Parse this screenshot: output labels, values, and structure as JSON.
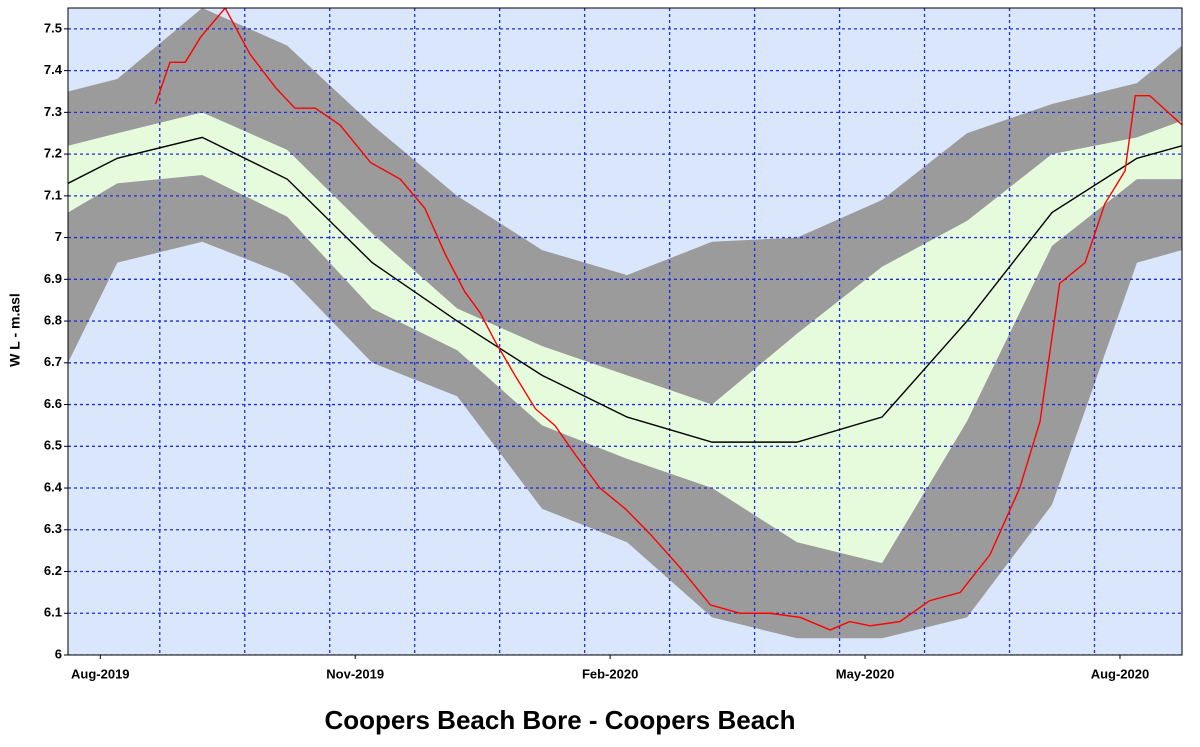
{
  "chart_data": {
    "type": "line",
    "title": "Coopers Beach Bore - Coopers Beach",
    "ylabel": "W L - m.asl",
    "xlim": [
      -0.38,
      12.73
    ],
    "xticks": [
      {
        "value": 0,
        "label": "Aug-2019"
      },
      {
        "value": 3,
        "label": "Nov-2019"
      },
      {
        "value": 6,
        "label": "Feb-2020"
      },
      {
        "value": 9,
        "label": "May-2020"
      },
      {
        "value": 12,
        "label": "Aug-2020"
      }
    ],
    "xminor": [
      0.7,
      1.7,
      2.7,
      3.7,
      4.7,
      5.7,
      6.7,
      7.7,
      8.7,
      9.7,
      10.7,
      11.7
    ],
    "ylim": [
      6.0,
      7.55
    ],
    "yticks": [
      6.0,
      6.1,
      6.2,
      6.3,
      6.4,
      6.5,
      6.6,
      6.7,
      6.8,
      6.9,
      7.0,
      7.1,
      7.2,
      7.3,
      7.4,
      7.5
    ],
    "grid": true,
    "background": "#dae6fb",
    "grid_color": "#1d2ee0",
    "bands": [
      {
        "color": "#9b9b9b",
        "x": [
          -0.38,
          0.2,
          1.2,
          2.2,
          3.2,
          4.2,
          5.2,
          6.2,
          7.2,
          8.2,
          9.2,
          10.2,
          11.2,
          12.2,
          12.73
        ],
        "upper": [
          7.35,
          7.38,
          7.55,
          7.46,
          7.27,
          7.1,
          6.97,
          6.91,
          6.99,
          7.0,
          7.09,
          7.25,
          7.32,
          7.37,
          7.46
        ],
        "lower": [
          6.7,
          6.94,
          6.99,
          6.91,
          6.7,
          6.62,
          6.35,
          6.27,
          6.09,
          6.04,
          6.04,
          6.09,
          6.36,
          6.94,
          6.97
        ]
      },
      {
        "color": "#e6fbdc",
        "x": [
          -0.38,
          0.2,
          1.2,
          2.2,
          3.2,
          4.2,
          5.2,
          6.2,
          7.2,
          8.2,
          9.2,
          10.2,
          11.2,
          12.2,
          12.73
        ],
        "upper": [
          7.22,
          7.25,
          7.3,
          7.21,
          7.01,
          6.83,
          6.74,
          6.67,
          6.6,
          6.77,
          6.93,
          7.04,
          7.2,
          7.24,
          7.28
        ],
        "lower": [
          7.06,
          7.13,
          7.15,
          7.05,
          6.83,
          6.73,
          6.55,
          6.47,
          6.4,
          6.27,
          6.22,
          6.56,
          6.98,
          7.14,
          7.14
        ]
      }
    ],
    "series": [
      {
        "color": "#000000",
        "x": [
          -0.38,
          0.2,
          1.2,
          2.2,
          3.2,
          4.2,
          5.2,
          6.2,
          7.2,
          8.2,
          9.2,
          10.2,
          11.2,
          12.2,
          12.73
        ],
        "values": [
          7.13,
          7.19,
          7.24,
          7.14,
          6.94,
          6.8,
          6.67,
          6.57,
          6.51,
          6.51,
          6.57,
          6.8,
          7.06,
          7.19,
          7.22
        ]
      },
      {
        "color": "#ff0000",
        "x": [
          0.65,
          0.82,
          1.0,
          1.18,
          1.47,
          1.76,
          2.06,
          2.29,
          2.53,
          2.82,
          3.18,
          3.53,
          3.82,
          4.06,
          4.29,
          4.47,
          4.65,
          4.88,
          5.12,
          5.35,
          5.59,
          5.88,
          6.18,
          6.47,
          6.82,
          7.18,
          7.53,
          7.88,
          8.24,
          8.59,
          8.82,
          9.06,
          9.41,
          9.76,
          10.12,
          10.47,
          10.82,
          11.06,
          11.29,
          11.59,
          11.82,
          12.06,
          12.18,
          12.35,
          12.73
        ],
        "values": [
          7.32,
          7.42,
          7.42,
          7.48,
          7.55,
          7.44,
          7.36,
          7.31,
          7.31,
          7.27,
          7.18,
          7.14,
          7.07,
          6.96,
          6.87,
          6.82,
          6.75,
          6.67,
          6.59,
          6.55,
          6.48,
          6.4,
          6.35,
          6.29,
          6.21,
          6.12,
          6.1,
          6.1,
          6.09,
          6.06,
          6.08,
          6.07,
          6.08,
          6.13,
          6.15,
          6.24,
          6.4,
          6.56,
          6.89,
          6.94,
          7.08,
          7.16,
          7.34,
          7.34,
          7.27
        ]
      }
    ]
  }
}
